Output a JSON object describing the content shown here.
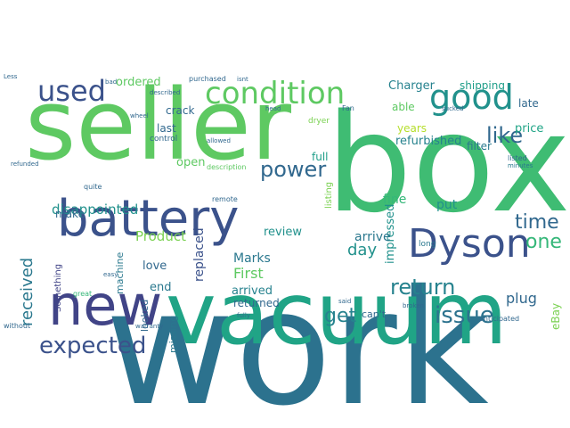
{
  "wordcloud": {
    "words": [
      {
        "text": "work",
        "color": "#2c728e"
      },
      {
        "text": "seller",
        "color": "#5ec962"
      },
      {
        "text": "box",
        "color": "#3fbc73"
      },
      {
        "text": "vacuum",
        "color": "#20a486"
      },
      {
        "text": "battery",
        "color": "#3b528b"
      },
      {
        "text": "new",
        "color": "#414487"
      },
      {
        "text": "Dyson",
        "color": "#3b528b"
      },
      {
        "text": "condition",
        "color": "#5ec962"
      },
      {
        "text": "good",
        "color": "#21918c"
      },
      {
        "text": "used",
        "color": "#3b528b"
      },
      {
        "text": "expected",
        "color": "#3b528b"
      },
      {
        "text": "power",
        "color": "#31688e"
      },
      {
        "text": "return",
        "color": "#26828e"
      },
      {
        "text": "like",
        "color": "#31688e"
      },
      {
        "text": "issue",
        "color": "#2c728e"
      },
      {
        "text": "one",
        "color": "#35b779"
      },
      {
        "text": "time",
        "color": "#31688e"
      },
      {
        "text": "get",
        "color": "#26828e"
      },
      {
        "text": "received",
        "color": "#2a788e"
      },
      {
        "text": "disappointed",
        "color": "#21918c"
      },
      {
        "text": "Product",
        "color": "#7ad151"
      },
      {
        "text": "First",
        "color": "#5ec962"
      },
      {
        "text": "day",
        "color": "#21918c"
      },
      {
        "text": "Marks",
        "color": "#2a788e"
      },
      {
        "text": "arrived",
        "color": "#26828e"
      },
      {
        "text": "plug",
        "color": "#31688e"
      },
      {
        "text": "refurbished",
        "color": "#26828e"
      },
      {
        "text": "ordered",
        "color": "#5ec962"
      },
      {
        "text": "Charger",
        "color": "#26828e"
      },
      {
        "text": "shipping",
        "color": "#1f9e89"
      },
      {
        "text": "price",
        "color": "#20a486"
      },
      {
        "text": "filter",
        "color": "#2a788e"
      },
      {
        "text": "years",
        "color": "#b5de2b"
      },
      {
        "text": "impressed",
        "color": "#21918c"
      },
      {
        "text": "fine",
        "color": "#35b779"
      },
      {
        "text": "put",
        "color": "#21918c"
      },
      {
        "text": "arrive",
        "color": "#2a788e"
      },
      {
        "text": "full",
        "color": "#1f9e89"
      },
      {
        "text": "open",
        "color": "#5ec962"
      },
      {
        "text": "review",
        "color": "#21918c"
      },
      {
        "text": "replaced",
        "color": "#3b528b"
      },
      {
        "text": "love",
        "color": "#31688e"
      },
      {
        "text": "end",
        "color": "#2a788e"
      },
      {
        "text": "returned",
        "color": "#31688e"
      },
      {
        "text": "missing",
        "color": "#2a788e"
      },
      {
        "text": "looked",
        "color": "#31688e"
      },
      {
        "text": "machine",
        "color": "#2a788e"
      },
      {
        "text": "crack",
        "color": "#31688e"
      },
      {
        "text": "last",
        "color": "#31688e"
      },
      {
        "text": "make",
        "color": "#31688e"
      },
      {
        "text": "Something",
        "color": "#414487"
      },
      {
        "text": "able",
        "color": "#5ec962"
      },
      {
        "text": "late",
        "color": "#31688e"
      },
      {
        "text": "listing",
        "color": "#7ad151"
      },
      {
        "text": "eBay",
        "color": "#7ad151"
      },
      {
        "text": "can't",
        "color": "#31688e"
      },
      {
        "text": "anticipated",
        "color": "#31688e"
      },
      {
        "text": "control",
        "color": "#31688e"
      },
      {
        "text": "purchased",
        "color": "#31688e"
      },
      {
        "text": "description",
        "color": "#5ec962"
      },
      {
        "text": "remote",
        "color": "#31688e"
      },
      {
        "text": "quite",
        "color": "#31688e"
      },
      {
        "text": "dryer",
        "color": "#7ad151"
      },
      {
        "text": "long",
        "color": "#2a788e"
      },
      {
        "text": "listed",
        "color": "#31688e"
      },
      {
        "text": "minutes",
        "color": "#2a788e"
      },
      {
        "text": "Fan",
        "color": "#31688e"
      },
      {
        "text": "described",
        "color": "#31688e"
      },
      {
        "text": "allowed",
        "color": "#31688e"
      },
      {
        "text": "wheel",
        "color": "#31688e"
      },
      {
        "text": "bad",
        "color": "#31688e"
      },
      {
        "text": "isnt",
        "color": "#31688e"
      },
      {
        "text": "head",
        "color": "#31688e"
      },
      {
        "text": "refunded",
        "color": "#31688e"
      },
      {
        "text": "without",
        "color": "#31688e"
      },
      {
        "text": "warranty",
        "color": "#31688e"
      },
      {
        "text": "broken",
        "color": "#31688e"
      },
      {
        "text": "great",
        "color": "#35b779"
      },
      {
        "text": "said",
        "color": "#31688e"
      },
      {
        "text": "fully",
        "color": "#31688e"
      },
      {
        "text": "sucked",
        "color": "#31688e"
      },
      {
        "text": "Less",
        "color": "#31688e"
      },
      {
        "text": "easy",
        "color": "#31688e"
      }
    ]
  }
}
